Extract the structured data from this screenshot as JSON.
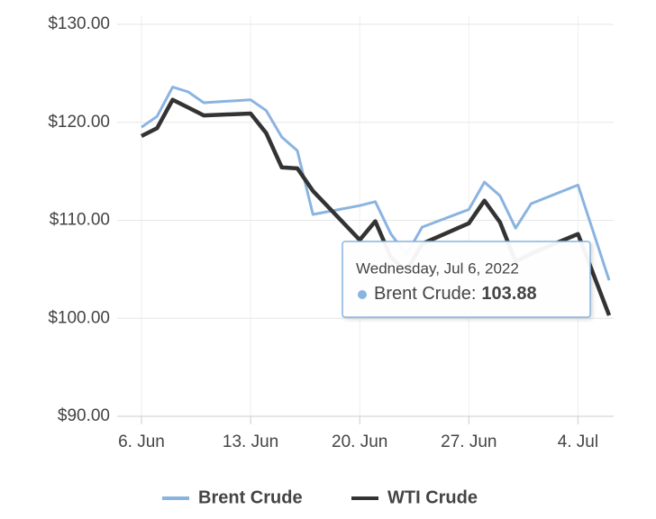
{
  "chart_data": {
    "type": "line",
    "x": [
      "2022-06-06",
      "2022-06-07",
      "2022-06-08",
      "2022-06-09",
      "2022-06-10",
      "2022-06-13",
      "2022-06-14",
      "2022-06-15",
      "2022-06-16",
      "2022-06-17",
      "2022-06-20",
      "2022-06-21",
      "2022-06-22",
      "2022-06-23",
      "2022-06-24",
      "2022-06-27",
      "2022-06-28",
      "2022-06-29",
      "2022-06-30",
      "2022-07-01",
      "2022-07-04",
      "2022-07-06"
    ],
    "series": [
      {
        "name": "Brent Crude",
        "color": "#8ab4e0",
        "values": [
          119.5,
          120.6,
          123.6,
          123.1,
          122.0,
          122.3,
          121.2,
          118.5,
          117.1,
          110.6,
          111.5,
          111.9,
          108.6,
          106.5,
          109.3,
          111.1,
          113.9,
          112.5,
          109.2,
          111.7,
          113.6,
          103.88
        ]
      },
      {
        "name": "WTI Crude",
        "color": "#333333",
        "values": [
          118.6,
          119.4,
          122.3,
          121.5,
          120.7,
          120.9,
          118.9,
          115.4,
          115.3,
          113.0,
          108.0,
          109.9,
          106.2,
          104.8,
          107.6,
          109.7,
          112.0,
          109.8,
          105.8,
          106.6,
          108.6,
          100.3
        ]
      }
    ],
    "xlim": [
      "2022-06-06",
      "2022-07-06"
    ],
    "xticks": [
      {
        "value": "2022-06-06",
        "label": "6. Jun"
      },
      {
        "value": "2022-06-13",
        "label": "13. Jun"
      },
      {
        "value": "2022-06-20",
        "label": "20. Jun"
      },
      {
        "value": "2022-06-27",
        "label": "27. Jun"
      },
      {
        "value": "2022-07-04",
        "label": "4. Jul"
      }
    ],
    "ylim": [
      90,
      130
    ],
    "yticks": [
      {
        "value": 90,
        "label": "$90.00"
      },
      {
        "value": 100,
        "label": "$100.00"
      },
      {
        "value": 110,
        "label": "$110.00"
      },
      {
        "value": 120,
        "label": "$120.00"
      },
      {
        "value": 130,
        "label": "$130.00"
      }
    ],
    "grid": true,
    "tooltip": {
      "title": "Wednesday, Jul 6, 2022",
      "label": "Brent Crude:",
      "value": 103.88
    }
  }
}
